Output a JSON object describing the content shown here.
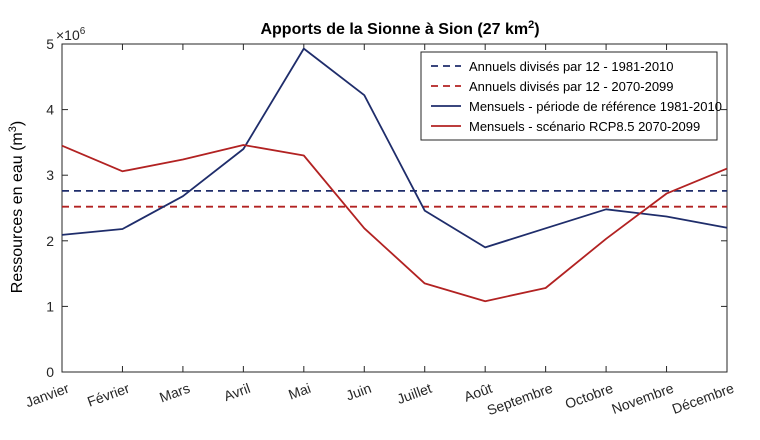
{
  "chart_data": {
    "type": "line",
    "title": "Apports de la Sionne à Sion (27 km",
    "title_superscript": "2",
    "title_suffix": ")",
    "ylabel": "Ressources en eau (m",
    "ylabel_superscript": "3",
    "ylabel_suffix": ")",
    "y_multiplier": "×10",
    "y_multiplier_exponent": "6",
    "ylim": [
      0,
      5
    ],
    "yticks": [
      0,
      1,
      2,
      3,
      4,
      5
    ],
    "categories": [
      "Janvier",
      "Février",
      "Mars",
      "Avril",
      "Mai",
      "Juin",
      "Juillet",
      "Août",
      "Septembre",
      "Octobre",
      "Novembre",
      "Décembre"
    ],
    "series": [
      {
        "name": "Annuels divisés par 12 - 1981-2010",
        "style": "dashed",
        "color": "#1f2d6b",
        "values": [
          2.76,
          2.76,
          2.76,
          2.76,
          2.76,
          2.76,
          2.76,
          2.76,
          2.76,
          2.76,
          2.76,
          2.76
        ]
      },
      {
        "name": "Annuels divisés par 12 - 2070-2099",
        "style": "dashed",
        "color": "#b22222",
        "values": [
          2.52,
          2.52,
          2.52,
          2.52,
          2.52,
          2.52,
          2.52,
          2.52,
          2.52,
          2.52,
          2.52,
          2.52
        ]
      },
      {
        "name": "Mensuels - période de référence 1981-2010",
        "style": "solid",
        "color": "#1f2d6b",
        "values": [
          2.09,
          2.18,
          2.68,
          3.4,
          4.93,
          4.22,
          2.46,
          1.9,
          2.19,
          2.48,
          2.37,
          2.2
        ]
      },
      {
        "name": "Mensuels - scénario RCP8.5 2070-2099",
        "style": "solid",
        "color": "#b22222",
        "values": [
          3.45,
          3.06,
          3.24,
          3.46,
          3.3,
          2.19,
          1.35,
          1.08,
          1.28,
          2.03,
          2.72,
          3.1
        ]
      }
    ],
    "legend_position": "top-right",
    "grid": false
  }
}
